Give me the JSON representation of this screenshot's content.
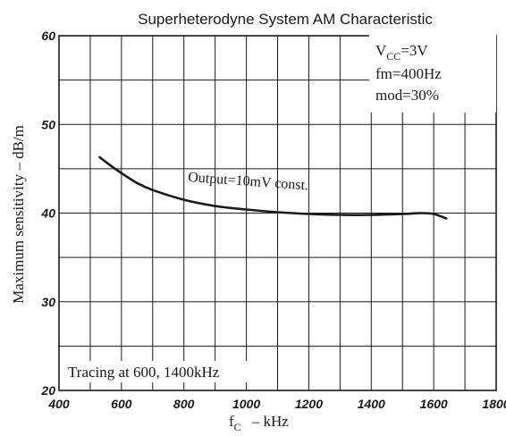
{
  "chart_data": {
    "type": "line",
    "title": "Superheterodyne System AM Characteristic",
    "xlabel_main": "f",
    "xlabel_sub": "C",
    "xlabel_rest": "–  kHz",
    "ylabel": "Maximum sensitivity  –  dB/m",
    "xlim": [
      400,
      1800
    ],
    "ylim": [
      20,
      60
    ],
    "x_ticks": [
      400,
      600,
      800,
      1000,
      1200,
      1400,
      1600,
      1800
    ],
    "y_ticks": [
      20,
      30,
      40,
      50,
      60
    ],
    "grid": true,
    "series": [
      {
        "name": "Output=10mV const.",
        "x": [
          530,
          560,
          600,
          650,
          700,
          800,
          900,
          1000,
          1100,
          1200,
          1300,
          1400,
          1500,
          1560,
          1600,
          1640
        ],
        "values": [
          46.3,
          45.5,
          44.5,
          43.4,
          42.6,
          41.5,
          40.8,
          40.4,
          40.1,
          39.9,
          39.8,
          39.8,
          39.9,
          40.0,
          39.9,
          39.4
        ]
      }
    ],
    "conditions": [
      "V",
      "CC",
      "=3V",
      "fm=400Hz",
      "mod=30%"
    ],
    "note": "Tracing at 600, 1400kHz"
  }
}
